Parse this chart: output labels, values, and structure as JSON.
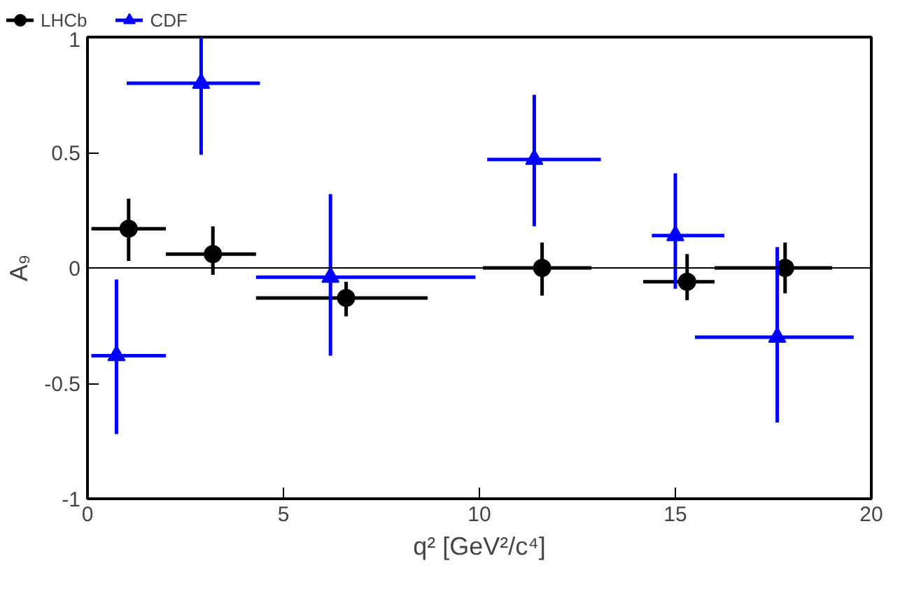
{
  "chart_data": {
    "type": "scatter",
    "xlabel": "q² [GeV²/c⁴]",
    "ylabel": "A₉",
    "xlim": [
      0,
      20
    ],
    "ylim": [
      -1,
      1
    ],
    "xticks": [
      0,
      5,
      10,
      15,
      20
    ],
    "yticks": [
      -1,
      -0.5,
      0,
      0.5,
      1
    ],
    "grid": false,
    "legend": "top left",
    "ref_lines": [
      {
        "axis": "y",
        "value": 0,
        "color": "#000000"
      }
    ],
    "series": [
      {
        "name": "LHCb",
        "color": "#000000",
        "marker": "circle",
        "x": [
          1.05,
          3.2,
          6.6,
          11.6,
          15.3,
          17.8
        ],
        "values": [
          0.17,
          0.06,
          -0.13,
          0.0,
          -0.06,
          0.0
        ],
        "errors": [
          [
            0.03,
            0.3
          ],
          [
            -0.03,
            0.18
          ],
          [
            -0.21,
            -0.06
          ],
          [
            -0.12,
            0.11
          ],
          [
            -0.14,
            0.06
          ],
          [
            -0.11,
            0.11
          ]
        ],
        "xerrors": [
          [
            0.1,
            2.0
          ],
          [
            2.0,
            4.3
          ],
          [
            4.3,
            8.68
          ],
          [
            10.09,
            12.86
          ],
          [
            14.18,
            16.0
          ],
          [
            16.0,
            19.0
          ]
        ]
      },
      {
        "name": "CDF",
        "color": "#0000ff",
        "marker": "triangle",
        "x": [
          0.74,
          2.9,
          6.2,
          11.4,
          15.0,
          17.6
        ],
        "values": [
          -0.38,
          0.8,
          -0.04,
          0.47,
          0.14,
          -0.3
        ],
        "errors": [
          [
            -0.72,
            -0.05
          ],
          [
            0.49,
            1.0
          ],
          [
            -0.38,
            0.32
          ],
          [
            0.18,
            0.75
          ],
          [
            -0.09,
            0.41
          ],
          [
            -0.67,
            0.09
          ]
        ],
        "xerrors": [
          [
            0.1,
            2.0
          ],
          [
            1.0,
            4.4
          ],
          [
            4.3,
            9.9
          ],
          [
            10.2,
            13.1
          ],
          [
            14.4,
            16.25
          ],
          [
            15.5,
            19.55
          ]
        ]
      }
    ]
  }
}
